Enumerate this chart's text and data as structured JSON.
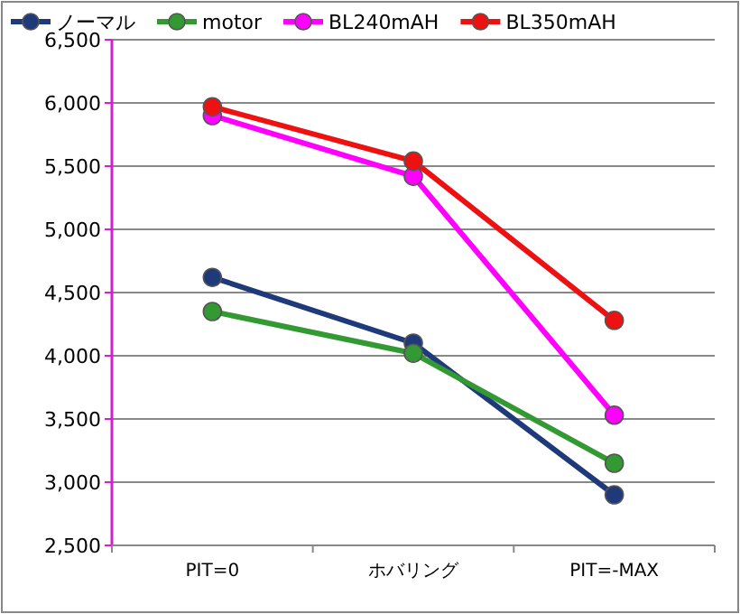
{
  "chart_data": {
    "type": "line",
    "categories": [
      "PIT=0",
      "ホバリング",
      "PIT=-MAX"
    ],
    "series": [
      {
        "name": "ノーマル",
        "color": "#1f3a7a",
        "values": [
          4620,
          4100,
          2900
        ]
      },
      {
        "name": "motor",
        "color": "#339933",
        "values": [
          4350,
          4020,
          3150
        ]
      },
      {
        "name": "BL240mAH",
        "color": "#ff00ff",
        "values": [
          5900,
          5420,
          3530
        ]
      },
      {
        "name": "BL350mAH",
        "color": "#ee1111",
        "values": [
          5970,
          5540,
          4280
        ]
      }
    ],
    "ylim": [
      2500,
      6500
    ],
    "yticks": [
      {
        "value": 2500,
        "label": "2,500"
      },
      {
        "value": 3000,
        "label": "3,000"
      },
      {
        "value": 3500,
        "label": "3,500"
      },
      {
        "value": 4000,
        "label": "4,000"
      },
      {
        "value": 4500,
        "label": "4,500"
      },
      {
        "value": 5000,
        "label": "5,000"
      },
      {
        "value": 5500,
        "label": "5,500"
      },
      {
        "value": 6000,
        "label": "6,000"
      },
      {
        "value": 6500,
        "label": "6,500"
      }
    ],
    "grid": "y",
    "legend": "top",
    "marker": "circle",
    "line_style": "solid"
  }
}
